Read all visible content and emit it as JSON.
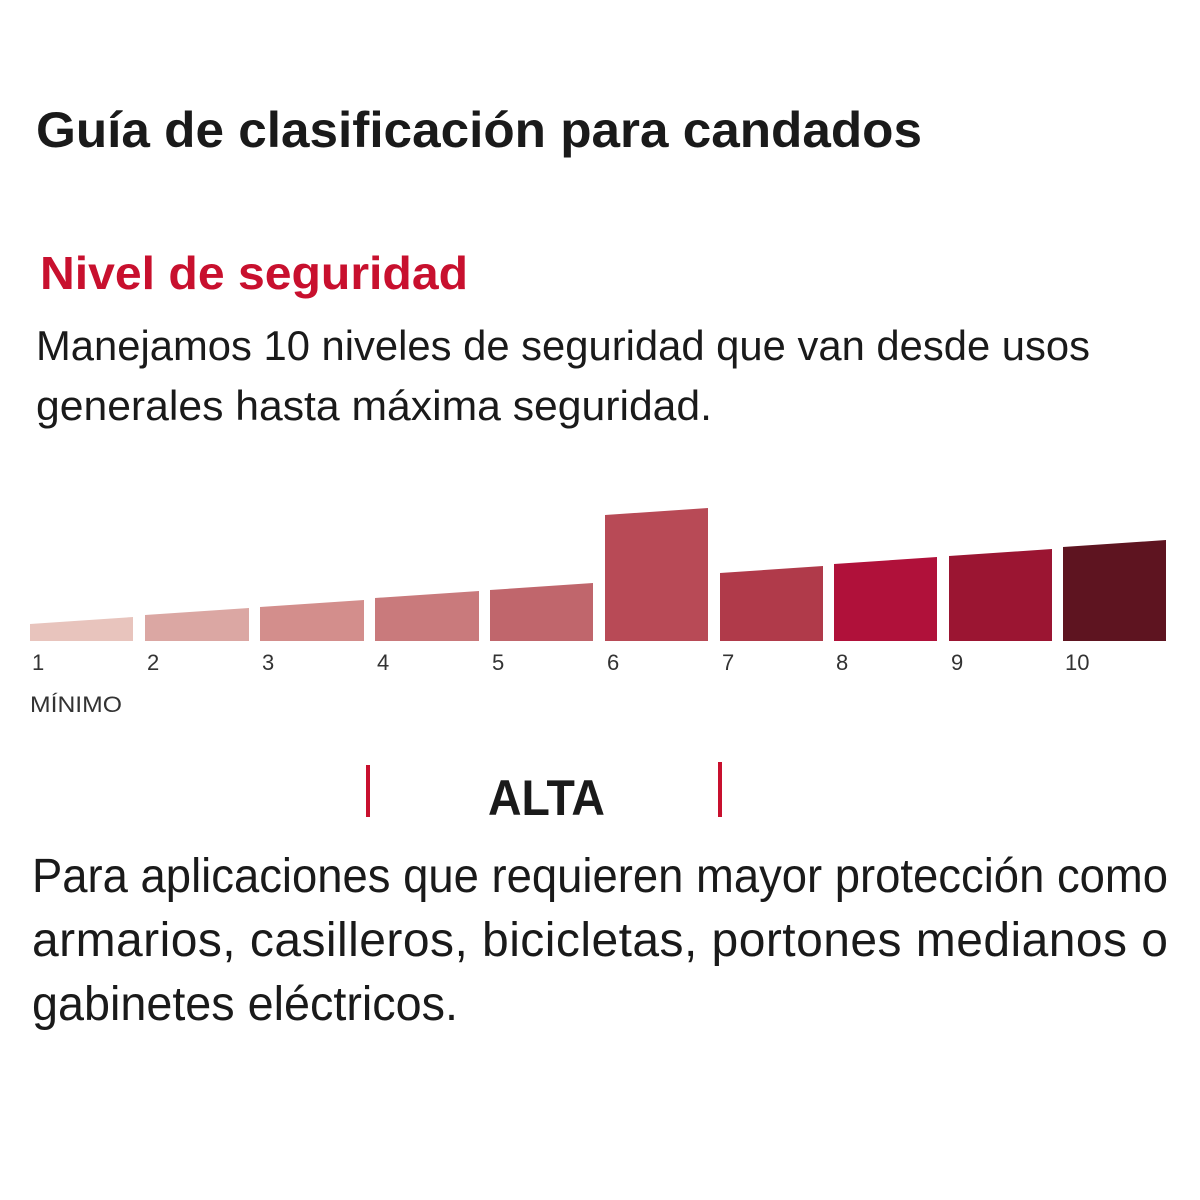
{
  "title": "Guía de clasificación para candados",
  "subtitle": "Nivel de seguridad",
  "intro": [
    "Manejamos 10 niveles de seguridad que van desde usos",
    "generales hasta máxima seguridad."
  ],
  "levels": [
    "1",
    "2",
    "3",
    "4",
    "5",
    "6",
    "7",
    "8",
    "9",
    "10"
  ],
  "min_label": "MÍNIMO",
  "category": "ALTA",
  "description": [
    "Para aplicaciones que requieren mayor protección como",
    "armarios, casilleros, bicicletas, portones medianos o",
    "gabinetes eléctricos."
  ]
}
